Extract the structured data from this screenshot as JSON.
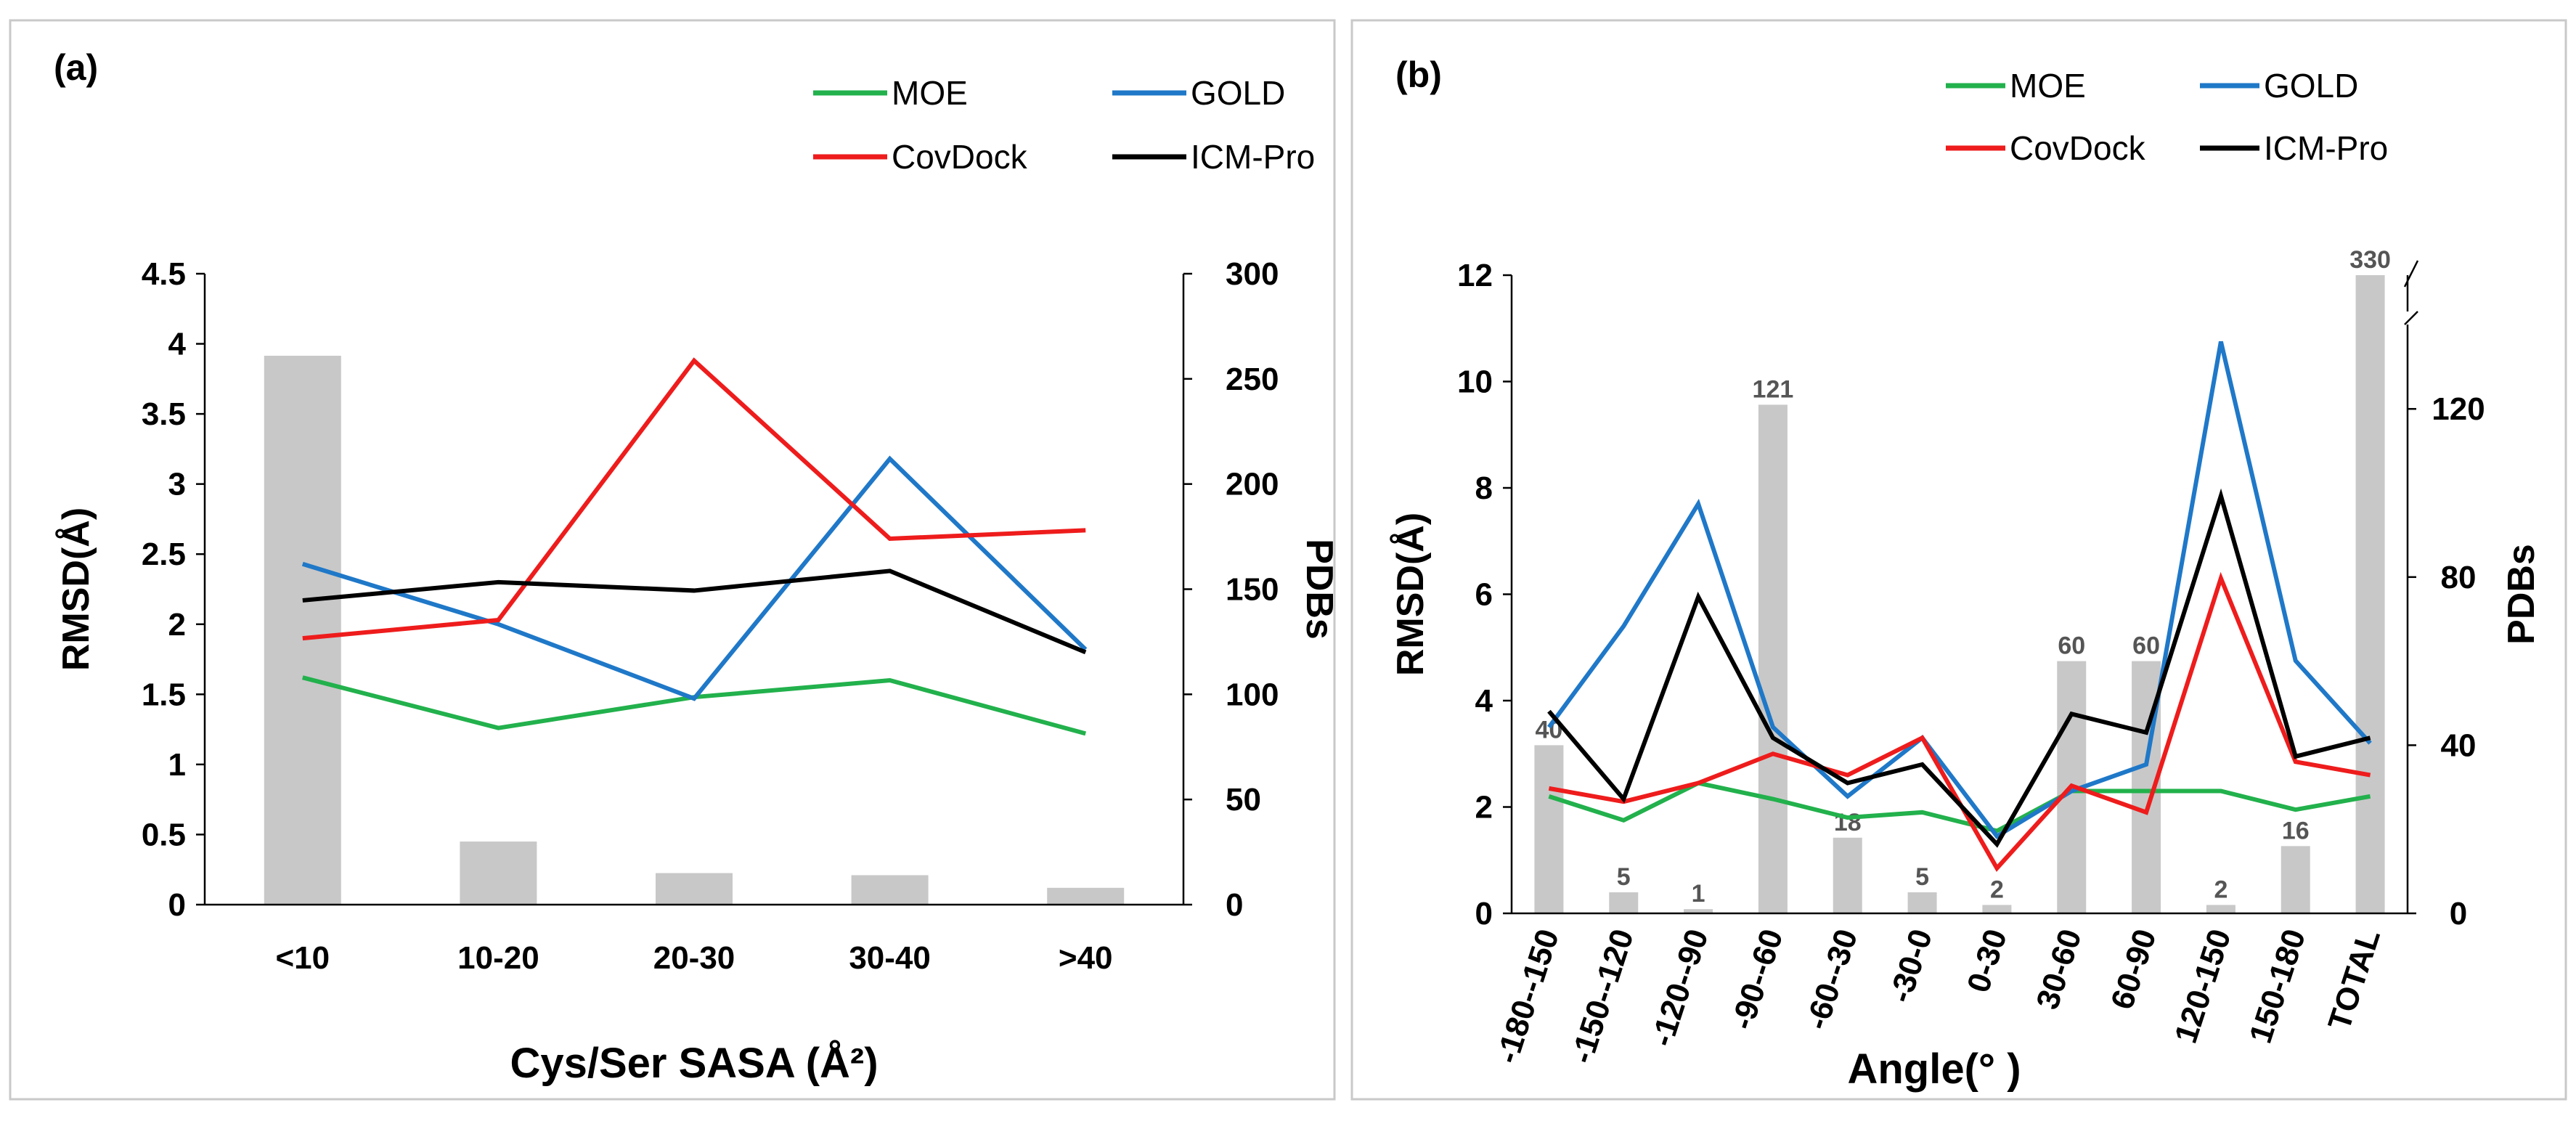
{
  "colors": {
    "MOE": "#22b14c",
    "GOLD": "#1f78c8",
    "CovDock": "#ee1c1c",
    "ICM-Pro": "#000000",
    "bar": "#c8c8c8"
  },
  "chart_data": [
    {
      "type": "bar+line",
      "panel_label": "(a)",
      "xlabel": "Cys/Ser SASA (Å²)",
      "ylabel": "RMSD(Å)",
      "y2label": "PDBs",
      "categories": [
        "<10",
        "10-20",
        "20-30",
        "30-40",
        ">40"
      ],
      "ylim": [
        0,
        4.5
      ],
      "yticks": [
        "0",
        "0.5",
        "1",
        "1.5",
        "2",
        "2.5",
        "3",
        "3.5",
        "4",
        "4.5"
      ],
      "y2lim": [
        0,
        300
      ],
      "y2ticks": [
        "0",
        "50",
        "100",
        "150",
        "200",
        "250",
        "300"
      ],
      "bars": {
        "name": "PDBs",
        "values": [
          261,
          30,
          15,
          14,
          8
        ]
      },
      "series": [
        {
          "name": "MOE",
          "values": [
            1.62,
            1.26,
            1.48,
            1.6,
            1.22
          ]
        },
        {
          "name": "GOLD",
          "values": [
            2.43,
            2.0,
            1.47,
            3.18,
            1.82
          ]
        },
        {
          "name": "CovDock",
          "values": [
            1.9,
            2.03,
            3.88,
            2.61,
            2.67
          ]
        },
        {
          "name": "ICM-Pro",
          "values": [
            2.17,
            2.3,
            2.24,
            2.38,
            1.8
          ]
        }
      ],
      "legend": [
        "MOE",
        "GOLD",
        "CovDock",
        "ICM-Pro"
      ]
    },
    {
      "type": "bar+line",
      "panel_label": "(b)",
      "xlabel": "Angle(° )",
      "ylabel": "RMSD(Å)",
      "y2label": "PDBs",
      "categories": [
        "-180--150",
        "-150--120",
        "-120--90",
        "-90--60",
        "-60--30",
        "-30-0",
        "0-30",
        "30-60",
        "60-90",
        "120-150",
        "150-180",
        "TOTAL"
      ],
      "ylim": [
        0,
        12
      ],
      "yticks": [
        "0",
        "2",
        "4",
        "6",
        "8",
        "10",
        "12"
      ],
      "y2ticks": [
        "0",
        "40",
        "80",
        "120"
      ],
      "y2_break": true,
      "bars": {
        "name": "PDBs",
        "values": [
          40,
          5,
          1,
          121,
          18,
          5,
          2,
          60,
          60,
          2,
          16,
          330
        ],
        "labels": [
          "40",
          "5",
          "1",
          "121",
          "18",
          "5",
          "2",
          "60",
          "60",
          "2",
          "16",
          "330"
        ]
      },
      "series": [
        {
          "name": "MOE",
          "values": [
            2.2,
            1.75,
            2.45,
            2.15,
            1.8,
            1.9,
            1.55,
            2.3,
            2.3,
            2.3,
            1.95,
            2.2
          ]
        },
        {
          "name": "GOLD",
          "values": [
            3.5,
            5.4,
            7.7,
            3.5,
            2.2,
            3.3,
            1.45,
            2.3,
            2.8,
            10.75,
            4.75,
            3.2
          ]
        },
        {
          "name": "CovDock",
          "values": [
            2.35,
            2.1,
            2.45,
            3.0,
            2.6,
            3.3,
            0.85,
            2.4,
            1.9,
            6.3,
            2.85,
            2.6
          ]
        },
        {
          "name": "ICM-Pro",
          "values": [
            3.8,
            2.15,
            5.95,
            3.3,
            2.45,
            2.8,
            1.3,
            3.75,
            3.4,
            7.85,
            2.95,
            3.3
          ]
        }
      ],
      "legend": [
        "MOE",
        "GOLD",
        "CovDock",
        "ICM-Pro"
      ]
    }
  ]
}
